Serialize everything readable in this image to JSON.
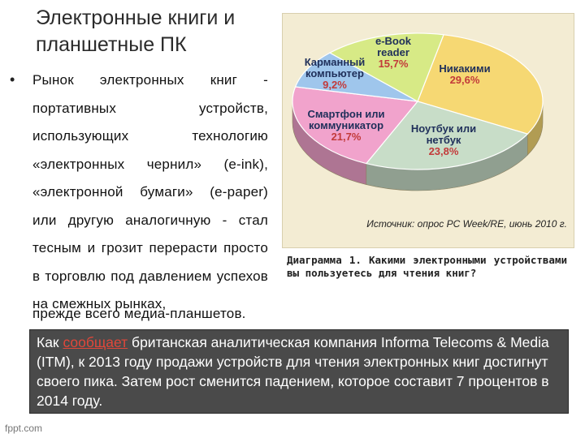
{
  "slide": {
    "title": "Электронные книги и планшетные ПК",
    "bullet": "Рынок электронных книг - портативных устройств, использующих технологию «электронных чернил» (e-ink), «электронной бумаги» (e-paper) или другую аналогичную - стал тесным и грозит перерасти просто в торговлю под давлением успехов на смежных рынках,",
    "bullet_tail": "прежде всего медиа-планшетов.",
    "caption": "Диаграмма 1. Какими электронными устройствами вы пользуетесь для чтения книг?",
    "news_link": "сообщает",
    "news_before": "Как ",
    "news_after": " британская аналитическая компания Informa Telecoms & Media (ITM), к 2013 году продажи устройств для чтения электронных книг достигнут своего пика. Затем рост сменится падением, которое составит 7 процентов в 2014 году.",
    "footer": "fppt.com"
  },
  "chart_data": {
    "type": "pie",
    "source": "Источник: опрос PC Week/RE, июнь 2010 г.",
    "slices": [
      {
        "label": "Никакими",
        "value_text": "29,6%",
        "value": 29.6,
        "color": "#f6d873"
      },
      {
        "label": "Ноутбук или нетбук",
        "value_text": "23,8%",
        "value": 23.8,
        "color": "#c8ddc8"
      },
      {
        "label": "Смартфон или коммуникатор",
        "value_text": "21,7%",
        "value": 21.7,
        "color": "#f1a3cc"
      },
      {
        "label": "Карманный компьютер",
        "value_text": "9,2%",
        "value": 9.2,
        "color": "#9fc6ec"
      },
      {
        "label": "e-Book reader",
        "value_text": "15,7%",
        "value": 15.7,
        "color": "#d7ea86"
      }
    ]
  }
}
